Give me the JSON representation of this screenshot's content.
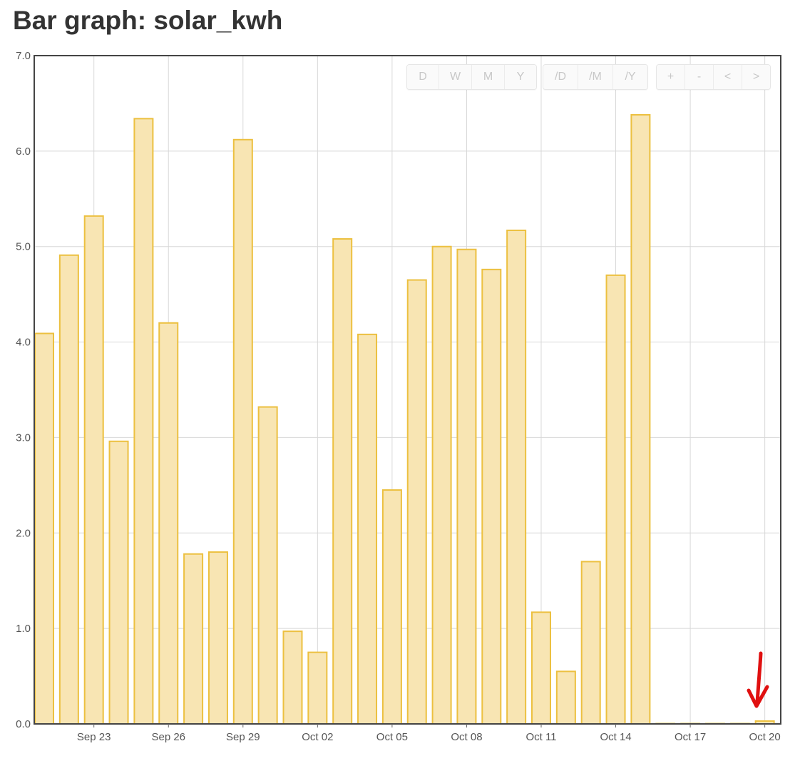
{
  "page": {
    "title": "Bar graph: solar_kwh"
  },
  "controls": {
    "range": [
      "D",
      "W",
      "M",
      "Y"
    ],
    "aggregate": [
      "/D",
      "/M",
      "/Y"
    ],
    "nav": [
      "+",
      "-",
      "<",
      ">"
    ]
  },
  "colors": {
    "bar_fill": "#f8e5b3",
    "bar_stroke": "#ecc040",
    "grid": "#d8d8d8",
    "frame": "#444444",
    "annotation_arrow": "#e01010"
  },
  "chart_data": {
    "type": "bar",
    "title": "",
    "xlabel": "",
    "ylabel": "",
    "ylim": [
      0,
      7
    ],
    "yticks": [
      "0.0",
      "1.0",
      "2.0",
      "3.0",
      "4.0",
      "5.0",
      "6.0",
      "7.0"
    ],
    "grid": true,
    "x": [
      "Sep 21",
      "Sep 22",
      "Sep 23",
      "Sep 24",
      "Sep 25",
      "Sep 26",
      "Sep 27",
      "Sep 28",
      "Sep 29",
      "Sep 30",
      "Oct 01",
      "Oct 02",
      "Oct 03",
      "Oct 04",
      "Oct 05",
      "Oct 06",
      "Oct 07",
      "Oct 08",
      "Oct 09",
      "Oct 10",
      "Oct 11",
      "Oct 12",
      "Oct 13",
      "Oct 14",
      "Oct 15",
      "Oct 16",
      "Oct 17",
      "Oct 18",
      "Oct 19",
      "Oct 20"
    ],
    "values": [
      4.09,
      4.91,
      5.32,
      2.96,
      6.34,
      4.2,
      1.78,
      1.8,
      6.12,
      3.32,
      0.97,
      0.75,
      5.08,
      4.08,
      2.45,
      4.65,
      5.0,
      4.97,
      4.76,
      5.17,
      1.17,
      0.55,
      1.7,
      4.7,
      6.38,
      0.0,
      0.0,
      0.0,
      0.0,
      0.03
    ],
    "xtick_labels": [
      "Sep 23",
      "Sep 26",
      "Sep 29",
      "Oct 02",
      "Oct 05",
      "Oct 08",
      "Oct 11",
      "Oct 14",
      "Oct 17",
      "Oct 20"
    ]
  }
}
